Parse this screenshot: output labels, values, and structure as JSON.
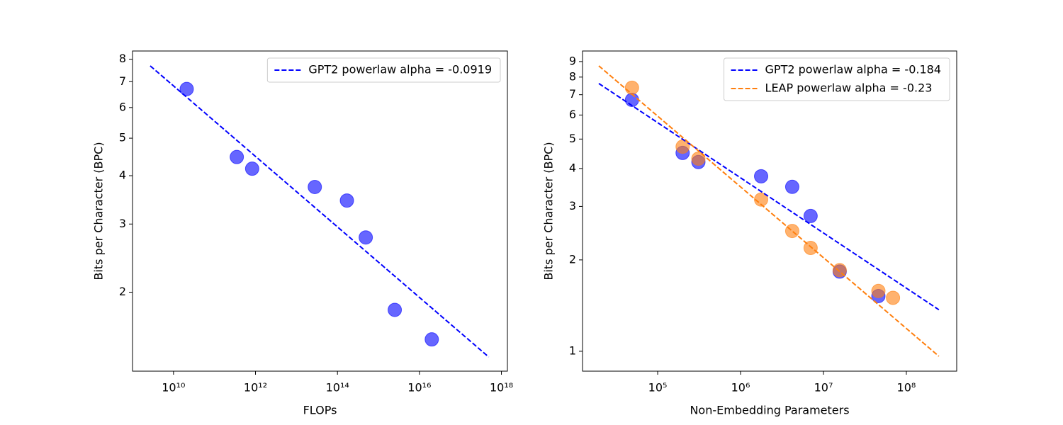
{
  "chart_data": [
    {
      "type": "scatter",
      "log_x": true,
      "log_y": true,
      "xlabel": "FLOPs",
      "ylabel": "Bits per Character (BPC)",
      "xlim": [
        1000000000.0,
        1.4e+18
      ],
      "ylim": [
        1.25,
        8.4
      ],
      "xticks": [
        {
          "value": 10000000000.0,
          "label": "10¹⁰"
        },
        {
          "value": 1000000000000.0,
          "label": "10¹²"
        },
        {
          "value": 100000000000000.0,
          "label": "10¹⁴"
        },
        {
          "value": 1e+16,
          "label": "10¹⁶"
        },
        {
          "value": 1e+18,
          "label": "10¹⁸"
        }
      ],
      "yticks": [
        2,
        3,
        4,
        5,
        6,
        7,
        8
      ],
      "legend": "upper right",
      "series": [
        {
          "mode": "markers",
          "color": "#0000ff",
          "x": [
            21000000000.0,
            350000000000.0,
            830000000000.0,
            28000000000000.0,
            170000000000000.0,
            490000000000000.0,
            2500000000000000.0,
            2e+16
          ],
          "values": [
            6.7,
            4.47,
            4.17,
            3.74,
            3.45,
            2.77,
            1.8,
            1.51
          ]
        },
        {
          "mode": "line",
          "name": "GPT2 powerlaw alpha = -0.0919",
          "color": "#0000ff",
          "dash": true,
          "x": [
            2700000000.0,
            4.9e+17
          ],
          "values": [
            7.69,
            1.36
          ]
        }
      ]
    },
    {
      "type": "scatter",
      "log_x": true,
      "log_y": true,
      "xlabel": "Non-Embedding Parameters",
      "ylabel": "Bits per Character (BPC)",
      "xlim": [
        12400.0,
        405000000.0
      ],
      "ylim": [
        0.86,
        9.75
      ],
      "xticks": [
        {
          "value": 100000.0,
          "label": "10⁵"
        },
        {
          "value": 1000000.0,
          "label": "10⁶"
        },
        {
          "value": 10000000.0,
          "label": "10⁷"
        },
        {
          "value": 100000000.0,
          "label": "10⁸"
        }
      ],
      "yticks": [
        1,
        2,
        3,
        4,
        5,
        6,
        7,
        8,
        9
      ],
      "legend": "upper right",
      "series": [
        {
          "mode": "markers",
          "color": "#0000ff",
          "x": [
            49000.0,
            200000.0,
            310000.0,
            1770000.0,
            4200000.0,
            7000000.0,
            15700000.0,
            46000000.0
          ],
          "values": [
            6.73,
            4.5,
            4.2,
            3.77,
            3.48,
            2.79,
            1.83,
            1.52
          ]
        },
        {
          "mode": "markers",
          "color": "#ff7f0e",
          "x": [
            49000.0,
            200000.0,
            310000.0,
            1770000.0,
            4200000.0,
            7000000.0,
            15700000.0,
            46000000.0,
            69000000.0
          ],
          "values": [
            7.38,
            4.72,
            4.31,
            3.16,
            2.49,
            2.19,
            1.85,
            1.58,
            1.5
          ]
        },
        {
          "mode": "line",
          "name": "GPT2 powerlaw alpha = -0.184",
          "color": "#0000ff",
          "dash": true,
          "x": [
            19500.0,
            247000000.0
          ],
          "values": [
            7.62,
            1.37
          ]
        },
        {
          "mode": "line",
          "name": "LEAP powerlaw alpha = -0.23",
          "color": "#ff7f0e",
          "dash": true,
          "x": [
            19500.0,
            247000000.0
          ],
          "values": [
            8.71,
            0.963
          ]
        }
      ]
    }
  ]
}
